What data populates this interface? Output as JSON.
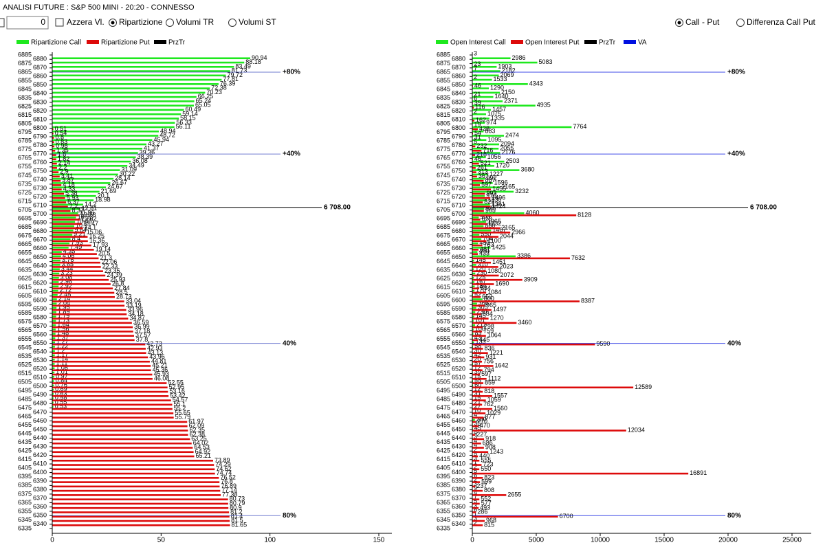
{
  "window_title": "ANALISI FUTURE : S&P 500 MINI - 20:20 - CONNESSO",
  "controls": {
    "counter": 0,
    "checkbox": {
      "label": "Azzera Vl.",
      "checked": false
    },
    "radios": [
      {
        "label": "Ripartizione",
        "checked": true
      },
      {
        "label": "Volumi TR",
        "checked": false
      },
      {
        "label": "Volumi ST",
        "checked": false
      }
    ],
    "mode_radios": [
      {
        "label": "Call - Put",
        "checked": true
      },
      {
        "label": "Differenza Call Put",
        "checked": false
      }
    ]
  },
  "chart_data": [
    {
      "type": "bar",
      "orientation": "horizontal",
      "categories": [
        6885,
        6880,
        6875,
        6870,
        6865,
        6860,
        6855,
        6850,
        6845,
        6840,
        6835,
        6830,
        6825,
        6820,
        6815,
        6810,
        6805,
        6800,
        6795,
        6790,
        6785,
        6780,
        6775,
        6770,
        6765,
        6760,
        6755,
        6750,
        6745,
        6740,
        6735,
        6730,
        6725,
        6720,
        6715,
        6710,
        6705,
        6700,
        6695,
        6690,
        6685,
        6680,
        6675,
        6670,
        6665,
        6660,
        6655,
        6650,
        6645,
        6640,
        6635,
        6630,
        6625,
        6620,
        6615,
        6610,
        6605,
        6600,
        6595,
        6590,
        6585,
        6580,
        6575,
        6570,
        6565,
        6560,
        6555,
        6550,
        6545,
        6540,
        6535,
        6530,
        6525,
        6520,
        6515,
        6510,
        6505,
        6500,
        6495,
        6490,
        6485,
        6480,
        6475,
        6470,
        6465,
        6460,
        6455,
        6450,
        6445,
        6440,
        6435,
        6430,
        6425,
        6420,
        6415,
        6410,
        6405,
        6400,
        6395,
        6390,
        6385,
        6380,
        6375,
        6370,
        6365,
        6360,
        6355,
        6350,
        6345,
        6340,
        6335
      ],
      "series": [
        {
          "name": "Ripartizione Call",
          "color": "#1ee81e",
          "values": [
            null,
            90.94,
            88.18,
            83.49,
            81.73,
            79.72,
            77.81,
            76.39,
            72.38,
            70.23,
            66.25,
            65.24,
            65.05,
            60.49,
            59.14,
            58.15,
            56.33,
            56.11,
            48.94,
            48.72,
            45.94,
            43.27,
            41.37,
            39.36,
            38.39,
            36.08,
            34.49,
            31.09,
            30.22,
            28.14,
            26.67,
            24.67,
            21.69,
            20.1,
            18.98,
            14.2,
            12.81,
            11.86,
            10.93,
            10.46,
            10.1,
            9.64,
            9.21,
            8.4,
            7.93,
            7.49,
            4.35,
            4.06,
            3.76,
            3.65,
            3.44,
            3.23,
            3.08,
            2.98,
            2.92,
            2.72,
            2.45,
            2.14,
            2.04,
            1.95,
            1.89,
            1.79,
            1.73,
            1.64,
            1.56,
            1.48,
            1.37,
            1.27,
            1.22,
            1.2,
            1.17,
            1.14,
            1.11,
            1.08,
            1.01,
            0.97,
            0.84,
            0.76,
            0.69,
            0.63,
            0.58,
            0.55,
            0.53,
            null,
            null,
            null,
            null,
            null,
            null,
            null,
            null,
            null,
            null,
            null,
            null,
            null,
            null,
            null,
            null,
            null,
            null,
            null,
            null,
            null,
            null,
            null,
            null,
            null,
            null,
            null,
            null
          ]
        },
        {
          "name": "Ripartizione Put",
          "color": "#dd0a0a",
          "values": [
            null,
            null,
            null,
            null,
            null,
            null,
            null,
            null,
            null,
            null,
            null,
            null,
            null,
            null,
            null,
            null,
            null,
            0.51,
            0.54,
            0.8,
            0.83,
            0.98,
            1.35,
            1.8,
            1.82,
            2.14,
            2.2,
            2.9,
            3.41,
            3.87,
            4.18,
            4.33,
            5.38,
            5.93,
            6.37,
            7.2,
            8.37,
            12.28,
            12.62,
            13.47,
            14.1,
            15.06,
            16.25,
            16.36,
            17.93,
            19.14,
            20.5,
            21.3,
            22.06,
            22.33,
            23.35,
            24.39,
            25.93,
            26.8,
            27.84,
            28.5,
            28.73,
            33.04,
            33.19,
            33.96,
            34.18,
            34.87,
            36.59,
            36.99,
            37.18,
            37.57,
            37.8,
            42.73,
            42.93,
            43.13,
            43.96,
            44.81,
            45.21,
            45.36,
            45.93,
            46.08,
            52.55,
            52.95,
            53.16,
            53.42,
            54.57,
            55.1,
            55.2,
            55.65,
            55.79,
            61.97,
            62.09,
            62.35,
            62.38,
            63.25,
            64.02,
            64.53,
            64.92,
            65.21,
            73.89,
            74.29,
            74.62,
            74.74,
            76.52,
            76.8,
            76.89,
            77.14,
            77.38,
            80.73,
            80.79,
            80.9,
            81.2,
            81.4,
            81.5,
            81.65,
            null
          ]
        }
      ],
      "price_line": {
        "name": "PrzTr",
        "color": "#000000",
        "value": 6708,
        "label": "6 708.00"
      },
      "levels": [
        {
          "value": 6865,
          "label": "+80%"
        },
        {
          "value": 6770,
          "label": "+40%"
        },
        {
          "value": 6550,
          "label": "40%"
        },
        {
          "value": 6350,
          "label": "80%"
        }
      ],
      "level_color": "#4050c0",
      "xlim": [
        0,
        150
      ],
      "xticks": [
        0,
        50,
        100,
        150
      ]
    },
    {
      "type": "bar",
      "orientation": "horizontal",
      "categories": [
        6885,
        6880,
        6875,
        6870,
        6865,
        6860,
        6855,
        6850,
        6845,
        6840,
        6835,
        6830,
        6825,
        6820,
        6815,
        6810,
        6805,
        6800,
        6795,
        6790,
        6785,
        6780,
        6775,
        6770,
        6765,
        6760,
        6755,
        6750,
        6745,
        6740,
        6735,
        6730,
        6725,
        6720,
        6715,
        6710,
        6705,
        6700,
        6695,
        6690,
        6685,
        6680,
        6675,
        6670,
        6665,
        6660,
        6655,
        6650,
        6645,
        6640,
        6635,
        6630,
        6625,
        6620,
        6615,
        6610,
        6605,
        6600,
        6595,
        6590,
        6585,
        6580,
        6575,
        6570,
        6565,
        6560,
        6555,
        6550,
        6545,
        6540,
        6535,
        6530,
        6525,
        6520,
        6515,
        6510,
        6505,
        6500,
        6495,
        6490,
        6485,
        6480,
        6475,
        6470,
        6465,
        6460,
        6455,
        6450,
        6445,
        6440,
        6435,
        6430,
        6425,
        6420,
        6415,
        6410,
        6405,
        6400,
        6395,
        6390,
        6385,
        6380,
        6375,
        6370,
        6365,
        6360,
        6355,
        6350,
        6345,
        6340,
        6335
      ],
      "series": [
        {
          "name": "Open Interest Call",
          "color": "#1ee81e",
          "values": [
            3,
            2986,
            5083,
            1903,
            2182,
            2069,
            1533,
            4343,
            1290,
            2150,
            1640,
            2371,
            4935,
            1457,
            1075,
            1335,
            974,
            7764,
            883,
            2474,
            1095,
            2094,
            2055,
            2176,
            1056,
            2503,
            1720,
            3680,
            1227,
            992,
            1596,
            2165,
            3232,
            976,
            1130,
            1381,
            925,
            4060,
            503,
            1065,
            880,
            1467,
            550,
            704,
            451,
            1425,
            400,
            3386,
            145,
            310,
            120,
            230,
            125,
            167,
            184,
            170,
            52,
            800,
            366,
            305,
            230,
            145,
            101,
            212,
            100,
            83,
            43,
            133,
            58,
            30,
            42,
            20,
            57,
            12,
            39,
            15,
            55,
            60,
            12,
            31,
            15,
            21,
            27,
            10,
            4,
            200,
            35,
            45,
            4,
            3,
            4,
            4,
            2,
            5,
            3,
            1,
            2,
            5,
            6,
            2,
            3,
            9,
            4,
            7,
            5,
            3,
            6,
            1,
            3,
            2,
            null
          ]
        },
        {
          "name": "Open Interest Put",
          "color": "#dd0a0a",
          "values": [
            null,
            null,
            23,
            7,
            null,
            2,
            null,
            46,
            null,
            21,
            6,
            39,
            116,
            2,
            null,
            162,
            19,
            428,
            54,
            31,
            5,
            232,
            716,
            218,
            46,
            521,
            261,
            313,
            367,
            887,
            597,
            1455,
            993,
            1406,
            823,
            1424,
            905,
            8128,
            623,
            1132,
            2165,
            2966,
            2044,
            1100,
            783,
            481,
            433,
            7632,
            1451,
            2023,
            1080,
            2072,
            3909,
            1690,
            534,
            1084,
            652,
            8387,
            965,
            1497,
            684,
            1270,
            3460,
            798,
            759,
            1064,
            445,
            9590,
            836,
            1221,
            931,
            756,
            1642,
            794,
            597,
            1112,
            859,
            12589,
            818,
            1557,
            1059,
            762,
            1560,
            1029,
            877,
            270,
            470,
            12034,
            227,
            918,
            686,
            908,
            1243,
            440,
            555,
            723,
            550,
            16891,
            823,
            599,
            237,
            808,
            2655,
            552,
            577,
            493,
            286,
            6700,
            968,
            815,
            null
          ]
        }
      ],
      "price_line": {
        "name": "PrzTr",
        "color": "#000000",
        "value": 6708,
        "label": "6 708.00"
      },
      "va": {
        "name": "VA",
        "color": "#0010e0"
      },
      "levels": [
        {
          "value": 6865,
          "label": "+80%"
        },
        {
          "value": 6770,
          "label": "+40%"
        },
        {
          "value": 6550,
          "label": "40%"
        },
        {
          "value": 6350,
          "label": "80%"
        }
      ],
      "level_color": "#4050c0",
      "xlim": [
        0,
        25000
      ],
      "xticks": [
        0,
        5000,
        10000,
        15000,
        20000,
        25000
      ]
    }
  ]
}
